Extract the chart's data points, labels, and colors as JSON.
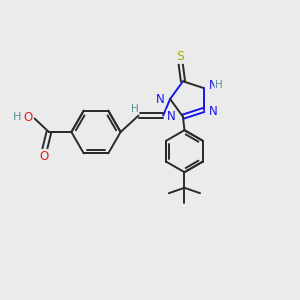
{
  "bg_color": "#ebebeb",
  "bond_color": "#2a2a2a",
  "atom_colors": {
    "C": "#2a2a2a",
    "H": "#5a9090",
    "N": "#1515ee",
    "O": "#dd2222",
    "S": "#aaaa00"
  },
  "figsize": [
    3.0,
    3.0
  ],
  "dpi": 100,
  "xlim": [
    0,
    10
  ],
  "ylim": [
    0,
    10
  ]
}
